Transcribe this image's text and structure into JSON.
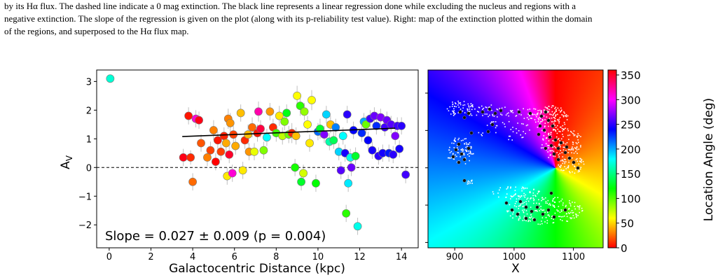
{
  "caption": {
    "line1": "by its Hα flux. The dashed line indicate a 0 mag extinction. The black line represents a linear regression done while excluding the nucleus and regions with a",
    "line2": "negative extinction. The slope of the regression is given on the plot (along with its p-reliability test value). Right: map of the extinction plotted within the domain",
    "line3": "of the regions, and superposed to the Hα flux map."
  },
  "chart_data": [
    {
      "type": "scatter",
      "xlabel": "Galactocentric Distance (kpc)",
      "ylabel": "A",
      "ylabel_sub": "V",
      "xlim": [
        -0.6,
        14.8
      ],
      "ylim": [
        -2.8,
        3.4
      ],
      "xticks": [
        0,
        2,
        4,
        6,
        8,
        10,
        12,
        14
      ],
      "yticks": [
        -2,
        -1,
        0,
        1,
        2,
        3
      ],
      "xtick_labels": [
        "0",
        "2",
        "4",
        "6",
        "8",
        "10",
        "12",
        "14"
      ],
      "ytick_labels": [
        "−2",
        "−1",
        "0",
        "1",
        "2",
        "3"
      ],
      "reference_line": {
        "y": 0,
        "style": "dashed"
      },
      "regression": {
        "x": [
          3.5,
          13.7
        ],
        "y": [
          1.08,
          1.37
        ]
      },
      "slope_text": "Slope = 0.027 ± 0.009 (p = 0.004)",
      "color_by": "Location Angle (deg)",
      "points": [
        {
          "x": 0.05,
          "y": 3.1,
          "err": 0.0,
          "angle": 170
        },
        {
          "x": 3.55,
          "y": 0.35,
          "err": 0.3,
          "angle": 355
        },
        {
          "x": 3.8,
          "y": 1.8,
          "err": 0.3,
          "angle": 5
        },
        {
          "x": 3.9,
          "y": 0.35,
          "err": 0.25,
          "angle": 10
        },
        {
          "x": 4.0,
          "y": -0.5,
          "err": 0.3,
          "angle": 25
        },
        {
          "x": 4.15,
          "y": 1.7,
          "err": 0.3,
          "angle": 310
        },
        {
          "x": 4.3,
          "y": 1.65,
          "err": 0.3,
          "angle": 355
        },
        {
          "x": 4.4,
          "y": 0.85,
          "err": 0.3,
          "angle": 20
        },
        {
          "x": 4.7,
          "y": 0.35,
          "err": 0.3,
          "angle": 30
        },
        {
          "x": 4.85,
          "y": 0.6,
          "err": 0.3,
          "angle": 15
        },
        {
          "x": 5.0,
          "y": 1.3,
          "err": 0.35,
          "angle": 30
        },
        {
          "x": 5.1,
          "y": 0.2,
          "err": 0.3,
          "angle": 0
        },
        {
          "x": 5.2,
          "y": 0.95,
          "err": 0.3,
          "angle": 5
        },
        {
          "x": 5.35,
          "y": 0.55,
          "err": 0.3,
          "angle": 15
        },
        {
          "x": 5.5,
          "y": 1.1,
          "err": 0.3,
          "angle": 8
        },
        {
          "x": 5.6,
          "y": 0.85,
          "err": 0.35,
          "angle": 40
        },
        {
          "x": 5.65,
          "y": -0.3,
          "err": 0.3,
          "angle": 55
        },
        {
          "x": 5.7,
          "y": 1.7,
          "err": 0.35,
          "angle": 30
        },
        {
          "x": 5.75,
          "y": 0.45,
          "err": 0.3,
          "angle": 350
        },
        {
          "x": 5.8,
          "y": 1.55,
          "err": 0.35,
          "angle": 35
        },
        {
          "x": 5.9,
          "y": -0.2,
          "err": 0.3,
          "angle": 310
        },
        {
          "x": 5.95,
          "y": 1.15,
          "err": 0.3,
          "angle": 15
        },
        {
          "x": 6.05,
          "y": 0.75,
          "err": 0.3,
          "angle": 40
        },
        {
          "x": 6.3,
          "y": 1.9,
          "err": 0.3,
          "angle": 45
        },
        {
          "x": 6.4,
          "y": -0.1,
          "err": 0.3,
          "angle": 55
        },
        {
          "x": 6.5,
          "y": 0.95,
          "err": 0.3,
          "angle": 10
        },
        {
          "x": 6.65,
          "y": 1.15,
          "err": 0.35,
          "angle": 45
        },
        {
          "x": 6.7,
          "y": 0.55,
          "err": 0.3,
          "angle": 35
        },
        {
          "x": 6.85,
          "y": 1.4,
          "err": 0.35,
          "angle": 25
        },
        {
          "x": 6.95,
          "y": 0.55,
          "err": 0.3,
          "angle": 65
        },
        {
          "x": 7.1,
          "y": 1.2,
          "err": 0.3,
          "angle": 5
        },
        {
          "x": 7.15,
          "y": 1.95,
          "err": 0.35,
          "angle": 320
        },
        {
          "x": 7.25,
          "y": 1.35,
          "err": 0.3,
          "angle": 345
        },
        {
          "x": 7.4,
          "y": 0.6,
          "err": 0.3,
          "angle": 90
        },
        {
          "x": 7.55,
          "y": 1.05,
          "err": 0.3,
          "angle": 180
        },
        {
          "x": 7.7,
          "y": 1.95,
          "err": 0.3,
          "angle": 35
        },
        {
          "x": 7.85,
          "y": 1.4,
          "err": 0.3,
          "angle": 10
        },
        {
          "x": 8.0,
          "y": 1.2,
          "err": 0.3,
          "angle": 105
        },
        {
          "x": 8.15,
          "y": 1.8,
          "err": 0.35,
          "angle": 55
        },
        {
          "x": 8.3,
          "y": 1.1,
          "err": 0.3,
          "angle": 75
        },
        {
          "x": 8.4,
          "y": 1.6,
          "err": 0.3,
          "angle": 90
        },
        {
          "x": 8.5,
          "y": 1.9,
          "err": 0.3,
          "angle": 125
        },
        {
          "x": 8.6,
          "y": 1.15,
          "err": 0.3,
          "angle": 95
        },
        {
          "x": 8.75,
          "y": 1.2,
          "err": 0.35,
          "angle": 10
        },
        {
          "x": 8.9,
          "y": 0.0,
          "err": 0.3,
          "angle": 115
        },
        {
          "x": 8.95,
          "y": 1.1,
          "err": 0.3,
          "angle": 45
        },
        {
          "x": 9.0,
          "y": 2.5,
          "err": 0.35,
          "angle": 60
        },
        {
          "x": 9.15,
          "y": 2.15,
          "err": 0.35,
          "angle": 110
        },
        {
          "x": 9.2,
          "y": -0.5,
          "err": 0.3,
          "angle": 130
        },
        {
          "x": 9.3,
          "y": -0.2,
          "err": 0.3,
          "angle": 70
        },
        {
          "x": 9.35,
          "y": 1.95,
          "err": 0.3,
          "angle": 85
        },
        {
          "x": 9.5,
          "y": 1.5,
          "err": 0.3,
          "angle": 60
        },
        {
          "x": 9.6,
          "y": 0.85,
          "err": 0.3,
          "angle": 55
        },
        {
          "x": 9.7,
          "y": 2.35,
          "err": 0.35,
          "angle": 60
        },
        {
          "x": 9.9,
          "y": -0.55,
          "err": 0.3,
          "angle": 120
        },
        {
          "x": 10.0,
          "y": 1.25,
          "err": 0.3,
          "angle": 215
        },
        {
          "x": 10.1,
          "y": 1.35,
          "err": 0.35,
          "angle": 130
        },
        {
          "x": 10.3,
          "y": 1.15,
          "err": 0.3,
          "angle": 270
        },
        {
          "x": 10.4,
          "y": 1.85,
          "err": 0.3,
          "angle": 190
        },
        {
          "x": 10.55,
          "y": 0.9,
          "err": 0.3,
          "angle": 160
        },
        {
          "x": 10.6,
          "y": 1.5,
          "err": 0.3,
          "angle": 45
        },
        {
          "x": 10.75,
          "y": 0.95,
          "err": 0.3,
          "angle": 140
        },
        {
          "x": 10.85,
          "y": 1.4,
          "err": 0.3,
          "angle": 210
        },
        {
          "x": 11.0,
          "y": 0.55,
          "err": 0.3,
          "angle": 190
        },
        {
          "x": 11.1,
          "y": -0.1,
          "err": 0.3,
          "angle": 260
        },
        {
          "x": 11.2,
          "y": 1.1,
          "err": 0.3,
          "angle": 180
        },
        {
          "x": 11.3,
          "y": 0.5,
          "err": 0.3,
          "angle": 245
        },
        {
          "x": 11.35,
          "y": -1.6,
          "err": 0.3,
          "angle": 110
        },
        {
          "x": 11.4,
          "y": 1.85,
          "err": 0.3,
          "angle": 250
        },
        {
          "x": 11.45,
          "y": -0.55,
          "err": 0.3,
          "angle": 185
        },
        {
          "x": 11.55,
          "y": 0.35,
          "err": 0.3,
          "angle": 175
        },
        {
          "x": 11.6,
          "y": 0.0,
          "err": 0.3,
          "angle": 265
        },
        {
          "x": 11.7,
          "y": 1.3,
          "err": 0.3,
          "angle": 240
        },
        {
          "x": 11.8,
          "y": 0.4,
          "err": 0.3,
          "angle": 130
        },
        {
          "x": 11.9,
          "y": -2.05,
          "err": 0.3,
          "angle": 175
        },
        {
          "x": 12.1,
          "y": 1.2,
          "err": 0.3,
          "angle": 230
        },
        {
          "x": 12.2,
          "y": 1.6,
          "err": 0.3,
          "angle": 200
        },
        {
          "x": 12.3,
          "y": 1.5,
          "err": 0.3,
          "angle": 95
        },
        {
          "x": 12.4,
          "y": 0.95,
          "err": 0.3,
          "angle": 240
        },
        {
          "x": 12.5,
          "y": 1.7,
          "err": 0.3,
          "angle": 255
        },
        {
          "x": 12.6,
          "y": 0.6,
          "err": 0.3,
          "angle": 245
        },
        {
          "x": 12.7,
          "y": 1.8,
          "err": 0.3,
          "angle": 265
        },
        {
          "x": 12.8,
          "y": 1.45,
          "err": 0.3,
          "angle": 230
        },
        {
          "x": 12.9,
          "y": 0.4,
          "err": 0.3,
          "angle": 250
        },
        {
          "x": 13.0,
          "y": 1.75,
          "err": 0.3,
          "angle": 270
        },
        {
          "x": 13.1,
          "y": 0.5,
          "err": 0.3,
          "angle": 245
        },
        {
          "x": 13.2,
          "y": 1.4,
          "err": 0.3,
          "angle": 255
        },
        {
          "x": 13.3,
          "y": 1.65,
          "err": 0.3,
          "angle": 265
        },
        {
          "x": 13.4,
          "y": 0.5,
          "err": 0.3,
          "angle": 235
        },
        {
          "x": 13.5,
          "y": 1.5,
          "err": 0.3,
          "angle": 260
        },
        {
          "x": 13.6,
          "y": 0.45,
          "err": 0.3,
          "angle": 250
        },
        {
          "x": 13.7,
          "y": 1.1,
          "err": 0.3,
          "angle": 270
        },
        {
          "x": 13.8,
          "y": 1.45,
          "err": 0.3,
          "angle": 255
        },
        {
          "x": 13.9,
          "y": 0.65,
          "err": 0.3,
          "angle": 245
        },
        {
          "x": 14.0,
          "y": 1.45,
          "err": 0.3,
          "angle": 250
        },
        {
          "x": 14.2,
          "y": -0.25,
          "err": 0.3,
          "angle": 255
        }
      ]
    },
    {
      "type": "heatmap",
      "xlabel": "X",
      "xticks": [
        900,
        1000,
        1100
      ],
      "xtick_labels": [
        "900",
        "1000",
        "1100"
      ],
      "xlim": [
        855,
        1150
      ],
      "colorbar_label": "Location Angle (deg)",
      "colorbar_ticks": [
        0,
        50,
        100,
        150,
        200,
        250,
        300,
        350
      ],
      "colorbar_tick_labels": [
        "0",
        "50",
        "100",
        "150",
        "200",
        "250",
        "300",
        "350"
      ],
      "colorbar_range": [
        0,
        360
      ],
      "center": {
        "x": 1068,
        "y_frac": 0.5
      }
    }
  ]
}
